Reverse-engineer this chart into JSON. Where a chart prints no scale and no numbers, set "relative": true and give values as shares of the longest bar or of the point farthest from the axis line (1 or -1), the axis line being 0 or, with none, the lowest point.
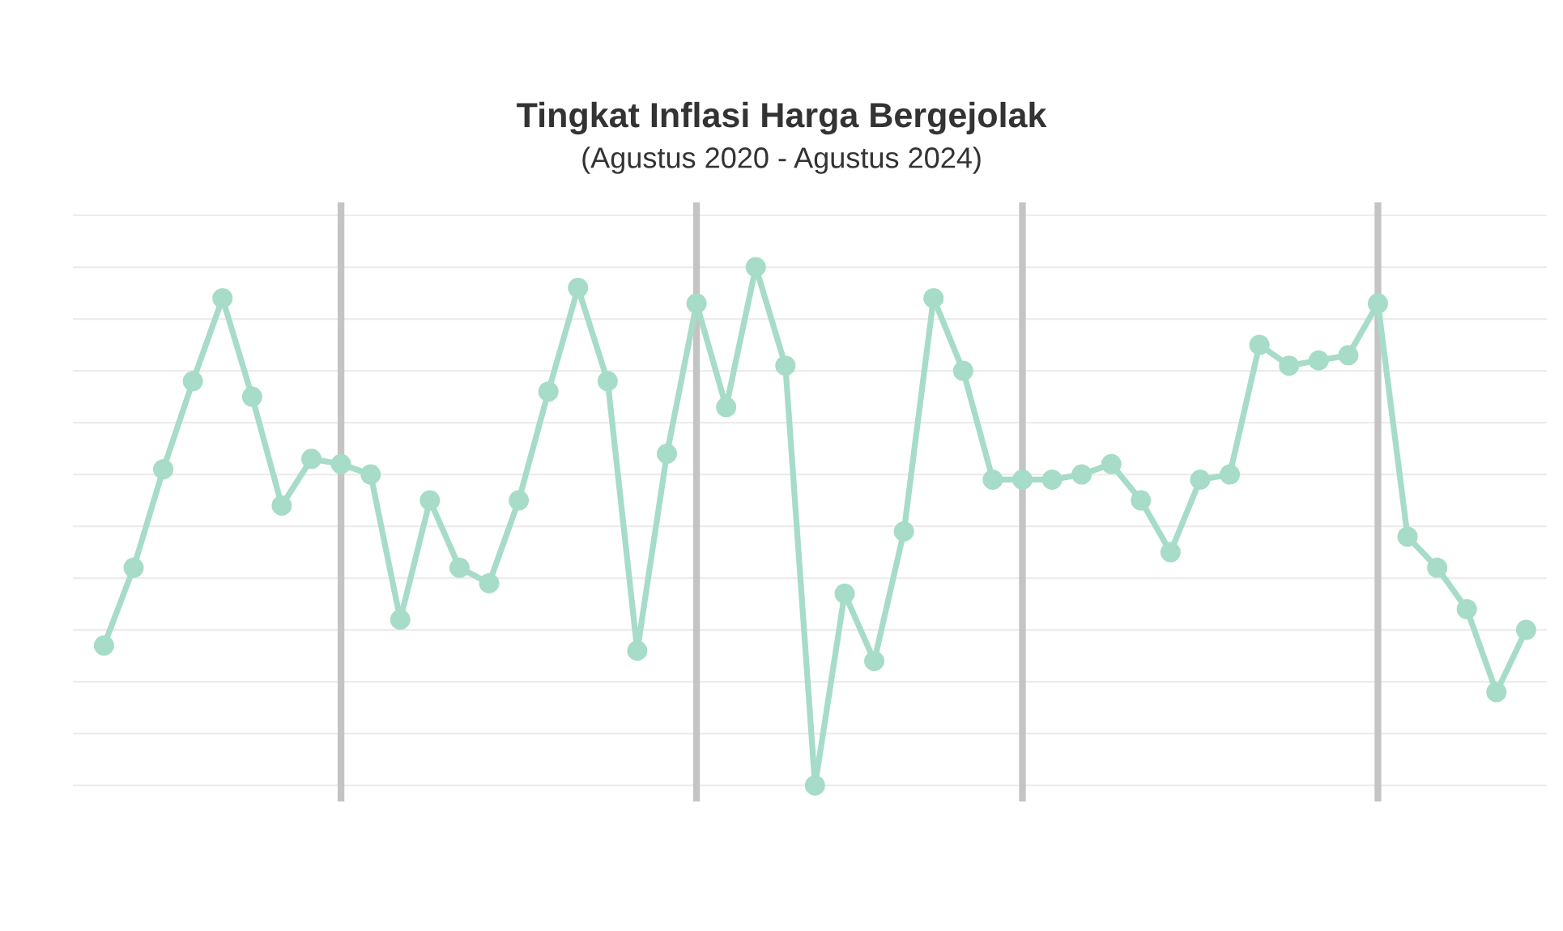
{
  "chart_data": {
    "type": "line",
    "title": "Tingkat Inflasi Harga Bergejolak",
    "subtitle": "(Agustus 2020 - Agustus 2024)",
    "categories": [
      null,
      null,
      null,
      null,
      null,
      null,
      null,
      null,
      null,
      null,
      null,
      null,
      null,
      null,
      null,
      null,
      null,
      null,
      null,
      null,
      null,
      null,
      null,
      null,
      null,
      null,
      null,
      null,
      null,
      null,
      null,
      null,
      null,
      null,
      null,
      null,
      null,
      null,
      null,
      null,
      null,
      null,
      null,
      null,
      null,
      null,
      null,
      null,
      null
    ],
    "values": [
      0.27,
      0.42,
      0.61,
      0.78,
      0.94,
      0.75,
      0.54,
      0.63,
      0.62,
      0.6,
      0.32,
      0.55,
      0.42,
      0.39,
      0.55,
      0.76,
      0.96,
      0.78,
      0.26,
      0.64,
      0.93,
      0.73,
      1,
      0.81,
      0,
      0.37,
      0.24,
      0.49,
      0.94,
      0.8,
      0.59,
      0.59,
      0.59,
      0.6,
      0.62,
      0.55,
      0.45,
      0.59,
      0.6,
      0.85,
      0.81,
      0.82,
      0.83,
      0.93,
      0.48,
      0.42,
      0.34,
      0.18,
      0.3
    ],
    "color": "#a6dcc8",
    "marker": "circle",
    "line_style": "solid",
    "relative": true,
    "grid": true
  }
}
